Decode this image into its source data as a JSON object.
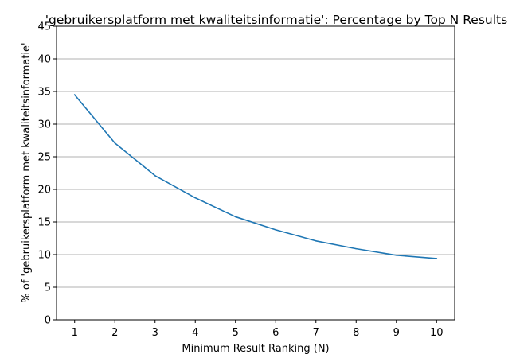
{
  "chart_data": {
    "type": "line",
    "title": "'gebruikersplatform met kwaliteitsinformatie': Percentage by Top N Results",
    "xlabel": "Minimum Result Ranking (N)",
    "ylabel": "% of 'gebruikersplatform met kwaliteitsinformatie'",
    "x": [
      1,
      2,
      3,
      4,
      5,
      6,
      7,
      8,
      9,
      10
    ],
    "x_ticks": [
      "1",
      "2",
      "3",
      "4",
      "5",
      "6",
      "7",
      "8",
      "9",
      "10"
    ],
    "y_ticks": [
      "0",
      "5",
      "10",
      "15",
      "20",
      "25",
      "30",
      "35",
      "40",
      "45"
    ],
    "xlim": [
      0.55,
      10.45
    ],
    "ylim": [
      0,
      45
    ],
    "grid": "y",
    "series": [
      {
        "values": [
          34.5,
          27.1,
          22.1,
          18.7,
          15.8,
          13.8,
          12.1,
          10.9,
          9.9,
          9.4
        ],
        "color": "#1f77b4"
      }
    ]
  }
}
